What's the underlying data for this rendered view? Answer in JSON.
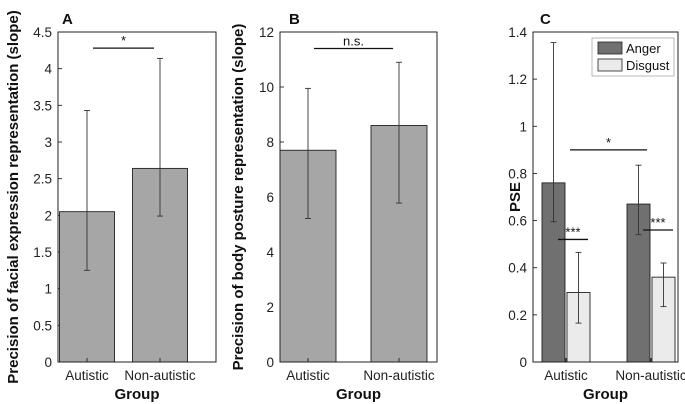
{
  "chart_data": [
    {
      "type": "bar",
      "panel_label": "A",
      "ylabel": "Precision of facial expression representation (slope)",
      "xlabel": "Group",
      "categories": [
        "Autistic",
        "Non-autistic"
      ],
      "values": [
        2.05,
        2.64
      ],
      "error_low": [
        1.25,
        1.99
      ],
      "error_high": [
        3.43,
        4.14
      ],
      "ylim": [
        0,
        4.5
      ],
      "yticks": [
        "0",
        "0.5",
        "1",
        "1.5",
        "2",
        "2.5",
        "3",
        "3.5",
        "4",
        "4.5"
      ],
      "bar_color": "#a6a6a6",
      "annotations": [
        {
          "text": "*",
          "between": [
            0,
            1
          ],
          "y": 4.28
        }
      ]
    },
    {
      "type": "bar",
      "panel_label": "B",
      "ylabel": "Precision of body posture representation (slope)",
      "xlabel": "Group",
      "categories": [
        "Autistic",
        "Non-autistic"
      ],
      "values": [
        7.7,
        8.6
      ],
      "error_low": [
        5.22,
        5.78
      ],
      "error_high": [
        9.95,
        10.9
      ],
      "ylim": [
        0,
        12
      ],
      "yticks": [
        "0",
        "2",
        "4",
        "6",
        "8",
        "10",
        "12"
      ],
      "bar_color": "#a6a6a6",
      "annotations": [
        {
          "text": "n.s.",
          "between": [
            0,
            1
          ],
          "y": 11.4
        }
      ]
    },
    {
      "type": "bar",
      "panel_label": "C",
      "ylabel": "PSE",
      "xlabel": "Group",
      "categories": [
        "Autistic",
        "Non-autistic"
      ],
      "series": [
        {
          "name": "Anger",
          "color": "#707070",
          "values": [
            0.76,
            0.67
          ],
          "error_low": [
            0.595,
            0.54
          ],
          "error_high": [
            1.355,
            0.835
          ]
        },
        {
          "name": "Disgust",
          "color": "#ebebeb",
          "values": [
            0.295,
            0.36
          ],
          "error_low": [
            0.165,
            0.235
          ],
          "error_high": [
            0.465,
            0.42
          ]
        }
      ],
      "ylim": [
        0,
        1.4
      ],
      "yticks": [
        "0",
        "0.2",
        "0.4",
        "0.6",
        "0.8",
        "1",
        "1.2",
        "1.4"
      ],
      "legend_position": "top-right",
      "annotations": [
        {
          "text": "***",
          "group": 0,
          "y": 0.52
        },
        {
          "text": "***",
          "group": 1,
          "y": 0.56
        },
        {
          "text": "*",
          "between_groups": [
            0,
            1
          ],
          "y": 0.9
        }
      ]
    }
  ]
}
